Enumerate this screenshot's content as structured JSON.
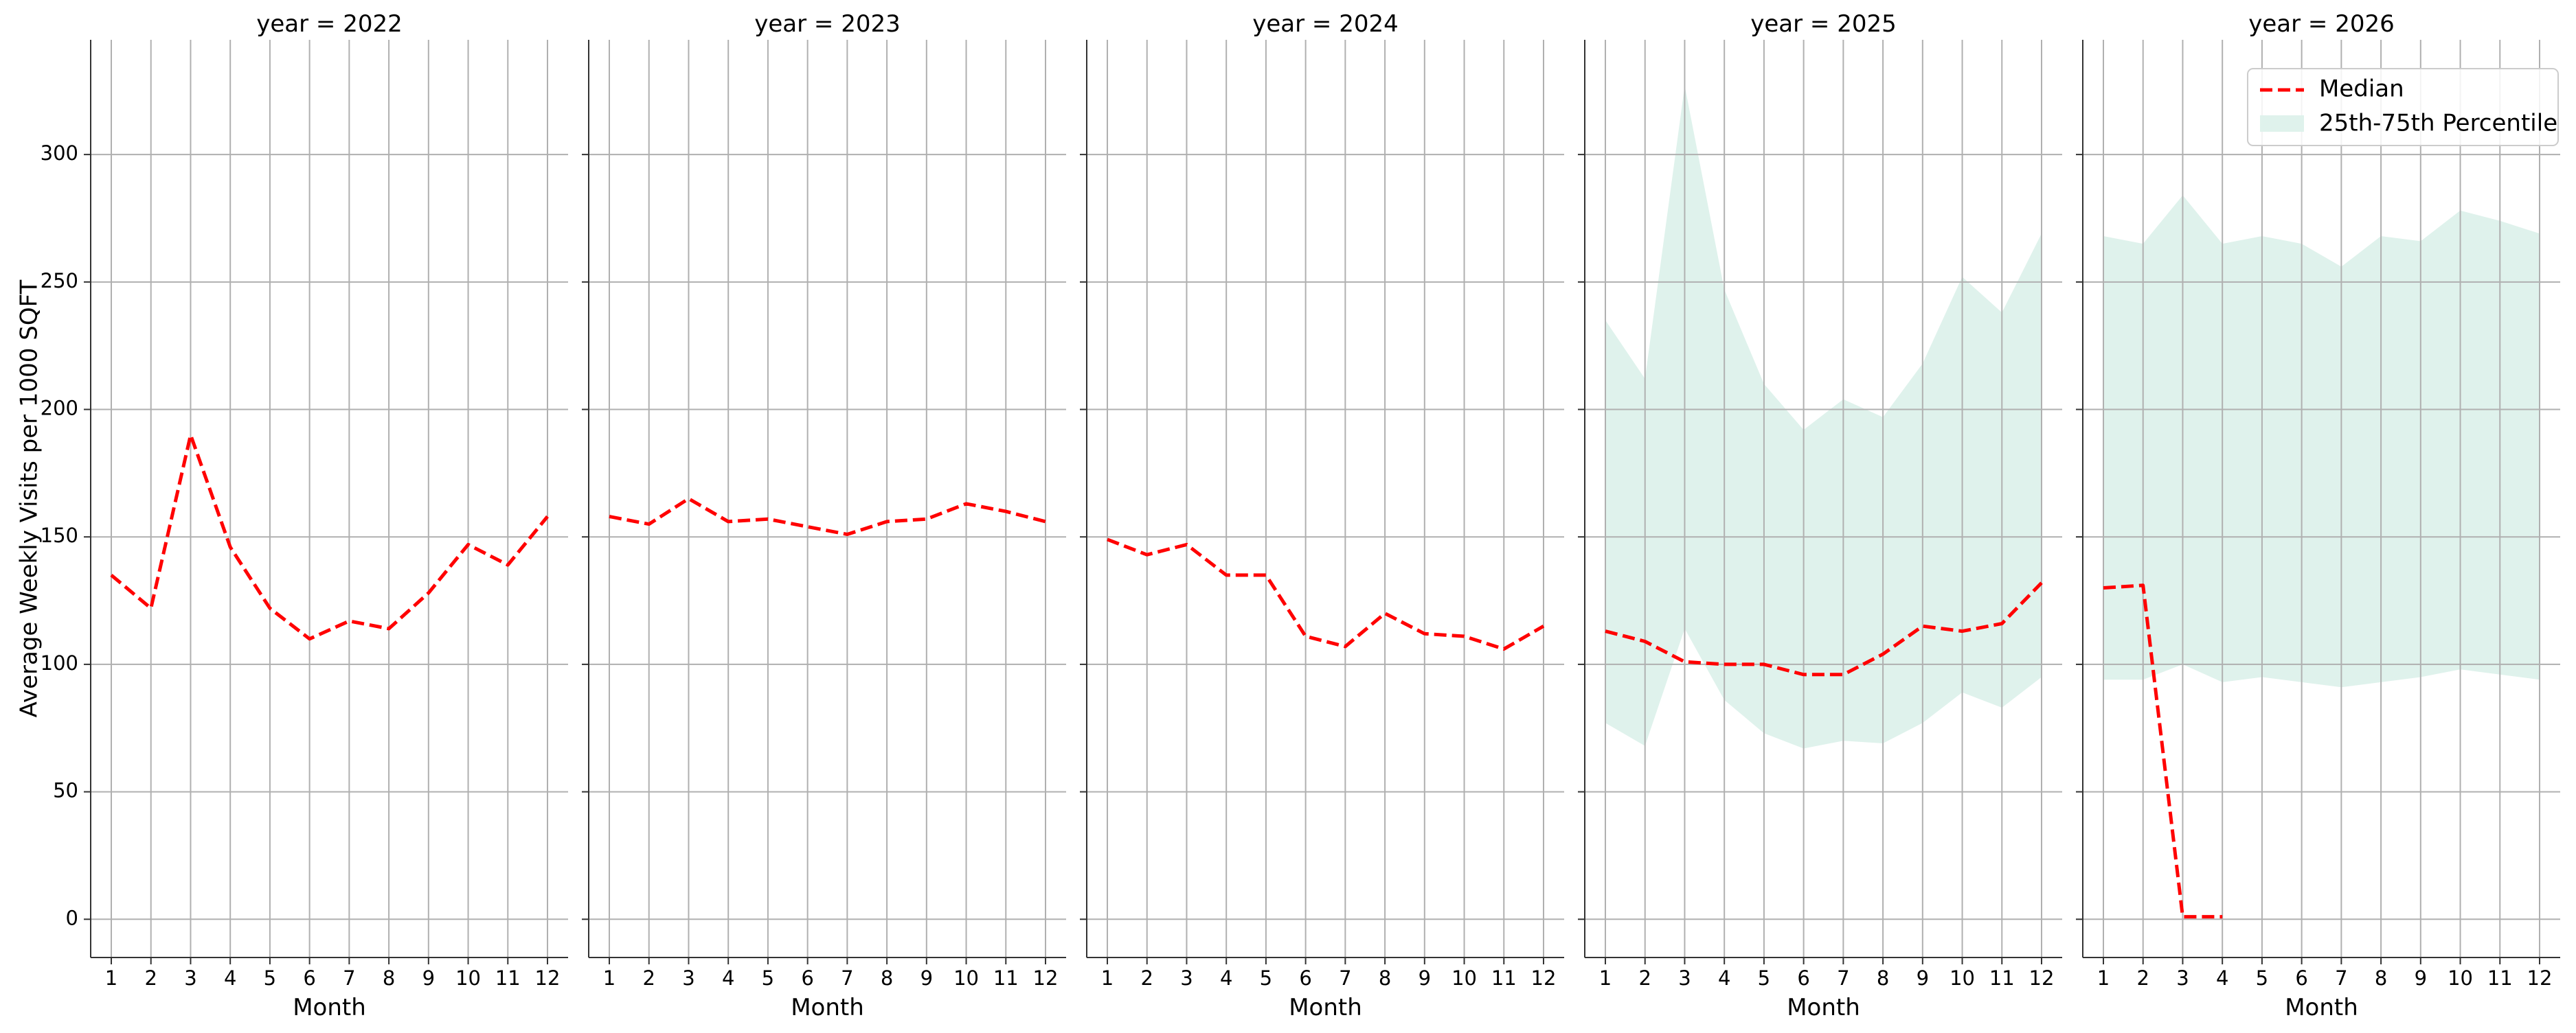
{
  "chart_data": {
    "type": "line",
    "ylabel": "Average Weekly Visits per 1000 SQFT",
    "xlabel": "Month",
    "x": [
      1,
      2,
      3,
      4,
      5,
      6,
      7,
      8,
      9,
      10,
      11,
      12
    ],
    "xtick_labels": [
      "1",
      "2",
      "3",
      "4",
      "5",
      "6",
      "7",
      "8",
      "9",
      "10",
      "11",
      "12"
    ],
    "ylim": [
      -15,
      345
    ],
    "yticks": [
      0,
      50,
      100,
      150,
      200,
      250,
      300
    ],
    "grid": true,
    "legend": {
      "placement": "top-right",
      "entries": [
        "Median",
        "25th-75th Percentile"
      ]
    },
    "colors": {
      "median": "#ff0000",
      "band": "#dff2ec",
      "grid": "#b0b0b0"
    },
    "panels": [
      {
        "title": "year = 2022",
        "median": [
          135,
          122,
          190,
          146,
          122,
          110,
          117,
          114,
          128,
          147,
          139,
          158
        ],
        "p25": null,
        "p75": null
      },
      {
        "title": "year = 2023",
        "median": [
          158,
          155,
          165,
          156,
          157,
          154,
          151,
          156,
          157,
          163,
          160,
          156
        ],
        "p25": null,
        "p75": null
      },
      {
        "title": "year = 2024",
        "median": [
          149,
          143,
          147,
          135,
          135,
          111,
          107,
          120,
          112,
          111,
          106,
          115
        ],
        "p25": null,
        "p75": null
      },
      {
        "title": "year = 2025",
        "median": [
          113,
          109,
          101,
          100,
          100,
          96,
          96,
          104,
          115,
          113,
          116,
          132
        ],
        "p25": [
          77,
          68,
          114,
          86,
          73,
          67,
          70,
          69,
          77,
          89,
          83,
          95
        ],
        "p75": [
          235,
          212,
          327,
          247,
          210,
          192,
          204,
          197,
          218,
          252,
          238,
          269
        ]
      },
      {
        "title": "year = 2026",
        "median": [
          130,
          131,
          1,
          1,
          null,
          null,
          null,
          null,
          null,
          null,
          null,
          null
        ],
        "p25": [
          94,
          94,
          100,
          93,
          95,
          93,
          91,
          93,
          95,
          98,
          96,
          94
        ],
        "p75": [
          268,
          265,
          284,
          265,
          268,
          265,
          256,
          268,
          266,
          278,
          274,
          269
        ]
      }
    ]
  }
}
